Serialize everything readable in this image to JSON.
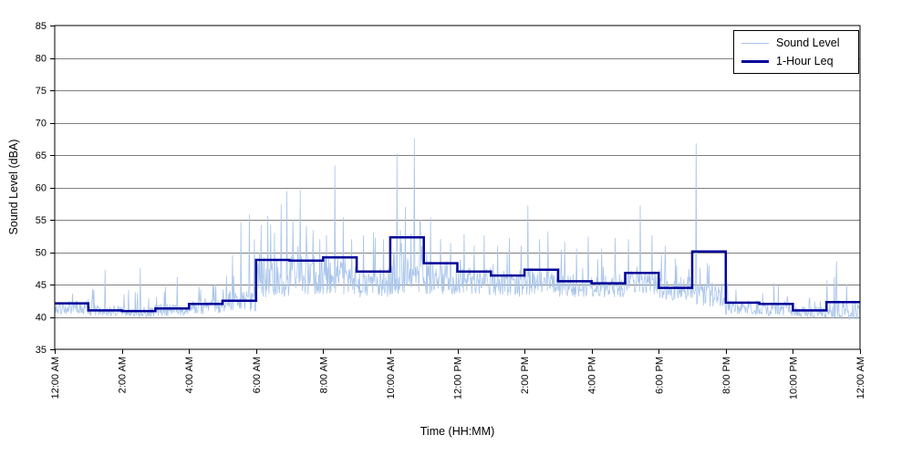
{
  "chart_data": {
    "type": "line",
    "xlabel": "Time (HH:MM)",
    "ylabel": "Sound Level (dBA)",
    "ylim": [
      35,
      85
    ],
    "xlim_hours": [
      0,
      24
    ],
    "grid": "horizontal",
    "y_ticks": [
      35,
      40,
      45,
      50,
      55,
      60,
      65,
      70,
      75,
      80,
      85
    ],
    "x_tick_hours": [
      0,
      2,
      4,
      6,
      8,
      10,
      12,
      14,
      16,
      18,
      20,
      22,
      24
    ],
    "x_tick_labels": [
      "12:00 AM",
      "2:00 AM",
      "4:00 AM",
      "6:00 AM",
      "8:00 AM",
      "10:00 AM",
      "12:00 PM",
      "2:00 PM",
      "4:00 PM",
      "6:00 PM",
      "8:00 PM",
      "10:00 PM",
      "12:00 AM"
    ],
    "colors": {
      "background": "#ffffff",
      "grid": "#7f7f7f",
      "axis": "#000000",
      "sound_level": "#a9c5ea",
      "leq": "#000099"
    },
    "legend": {
      "position": "top-right",
      "entries": [
        {
          "label": "Sound Level",
          "color": "#a9c5ea",
          "line_width": 1
        },
        {
          "label": "1-Hour Leq",
          "color": "#000099",
          "line_width": 3
        }
      ]
    },
    "series": [
      {
        "name": "1-Hour Leq",
        "type": "step",
        "color": "#000099",
        "hourly_values": [
          42.1,
          41.0,
          40.9,
          41.3,
          42.0,
          42.5,
          48.8,
          48.7,
          49.2,
          47.0,
          52.3,
          48.3,
          47.0,
          46.4,
          47.3,
          45.5,
          45.2,
          46.8,
          44.5,
          50.1,
          42.2,
          42.0,
          41.0,
          42.3
        ]
      },
      {
        "name": "Sound Level",
        "type": "noisy-line",
        "color": "#a9c5ea",
        "hourly_band": [
          [
            40.4,
            42.6
          ],
          [
            40.1,
            41.9
          ],
          [
            40.0,
            41.6
          ],
          [
            40.1,
            42.0
          ],
          [
            40.4,
            42.6
          ],
          [
            40.8,
            44.0
          ],
          [
            43.0,
            49.2
          ],
          [
            43.4,
            49.6
          ],
          [
            43.4,
            49.2
          ],
          [
            43.0,
            47.6
          ],
          [
            43.5,
            50.0
          ],
          [
            43.5,
            48.6
          ],
          [
            43.4,
            47.6
          ],
          [
            43.0,
            47.2
          ],
          [
            43.4,
            47.6
          ],
          [
            43.0,
            46.6
          ],
          [
            43.0,
            46.6
          ],
          [
            43.4,
            47.6
          ],
          [
            42.6,
            46.4
          ],
          [
            41.6,
            45.4
          ],
          [
            40.4,
            42.6
          ],
          [
            40.2,
            42.4
          ],
          [
            39.9,
            41.6
          ],
          [
            39.6,
            42.6
          ]
        ],
        "spikes": [
          [
            1.5,
            47.3
          ],
          [
            2.2,
            44.2
          ],
          [
            2.55,
            47.6
          ],
          [
            3.3,
            44.6
          ],
          [
            3.65,
            46.2
          ],
          [
            4.35,
            44.2
          ],
          [
            4.8,
            45.0
          ],
          [
            5.3,
            49.5
          ],
          [
            5.55,
            54.6
          ],
          [
            5.8,
            55.8
          ],
          [
            5.95,
            52.0
          ],
          [
            6.15,
            54.2
          ],
          [
            6.35,
            55.6
          ],
          [
            6.55,
            53.0
          ],
          [
            6.75,
            57.4
          ],
          [
            6.92,
            59.4
          ],
          [
            7.1,
            55.0
          ],
          [
            7.32,
            59.6
          ],
          [
            7.5,
            54.0
          ],
          [
            7.7,
            53.4
          ],
          [
            7.9,
            52.0
          ],
          [
            8.1,
            52.6
          ],
          [
            8.35,
            63.4
          ],
          [
            8.6,
            55.4
          ],
          [
            8.85,
            52.0
          ],
          [
            9.2,
            52.6
          ],
          [
            9.5,
            53.0
          ],
          [
            9.8,
            52.0
          ],
          [
            10.2,
            65.2
          ],
          [
            10.45,
            57.0
          ],
          [
            10.72,
            67.6
          ],
          [
            10.9,
            55.0
          ],
          [
            11.2,
            55.4
          ],
          [
            11.5,
            52.0
          ],
          [
            11.8,
            51.4
          ],
          [
            12.2,
            52.8
          ],
          [
            12.5,
            51.0
          ],
          [
            12.8,
            52.6
          ],
          [
            13.2,
            51.0
          ],
          [
            13.55,
            52.2
          ],
          [
            13.9,
            51.0
          ],
          [
            14.1,
            57.2
          ],
          [
            14.45,
            52.0
          ],
          [
            14.7,
            53.2
          ],
          [
            15.2,
            51.6
          ],
          [
            15.55,
            50.6
          ],
          [
            15.9,
            52.4
          ],
          [
            16.3,
            50.6
          ],
          [
            16.7,
            52.2
          ],
          [
            17.1,
            52.0
          ],
          [
            17.45,
            57.2
          ],
          [
            17.8,
            52.6
          ],
          [
            18.2,
            51.0
          ],
          [
            18.5,
            49.0
          ],
          [
            19.12,
            66.8
          ],
          [
            19.5,
            48.0
          ],
          [
            20.3,
            44.2
          ],
          [
            21.1,
            43.6
          ],
          [
            22.5,
            43.0
          ],
          [
            23.3,
            48.6
          ],
          [
            23.6,
            45.0
          ]
        ]
      }
    ]
  }
}
